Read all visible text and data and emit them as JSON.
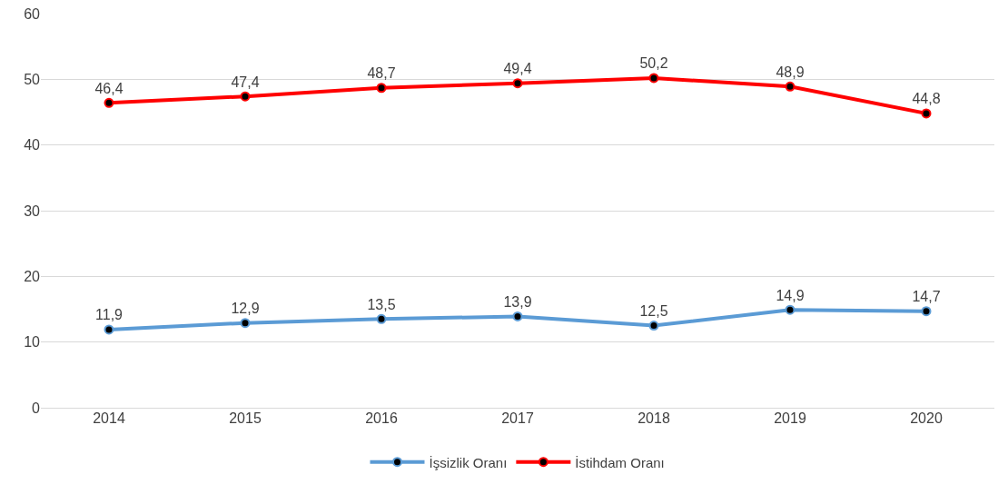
{
  "chart_data": {
    "type": "line",
    "categories": [
      "2014",
      "2015",
      "2016",
      "2017",
      "2018",
      "2019",
      "2020"
    ],
    "series": [
      {
        "name": "İşsizlik Oranı",
        "color": "#5b9bd5",
        "values": [
          11.9,
          12.9,
          13.5,
          13.9,
          12.5,
          14.9,
          14.7
        ],
        "value_labels": [
          "11,9",
          "12,9",
          "13,5",
          "13,9",
          "12,5",
          "14,9",
          "14,7"
        ]
      },
      {
        "name": "İstihdam Oranı",
        "color": "#ff0000",
        "values": [
          46.4,
          47.4,
          48.7,
          49.4,
          50.2,
          48.9,
          44.8
        ],
        "value_labels": [
          "46,4",
          "47,4",
          "48,7",
          "49,4",
          "50,2",
          "48,9",
          "44,8"
        ]
      }
    ],
    "ylim": [
      0,
      60
    ],
    "yticks": [
      0,
      10,
      20,
      30,
      40,
      50,
      60
    ],
    "grid": "y",
    "legend": "bottom",
    "marker": "circle",
    "line_style": "solid"
  }
}
